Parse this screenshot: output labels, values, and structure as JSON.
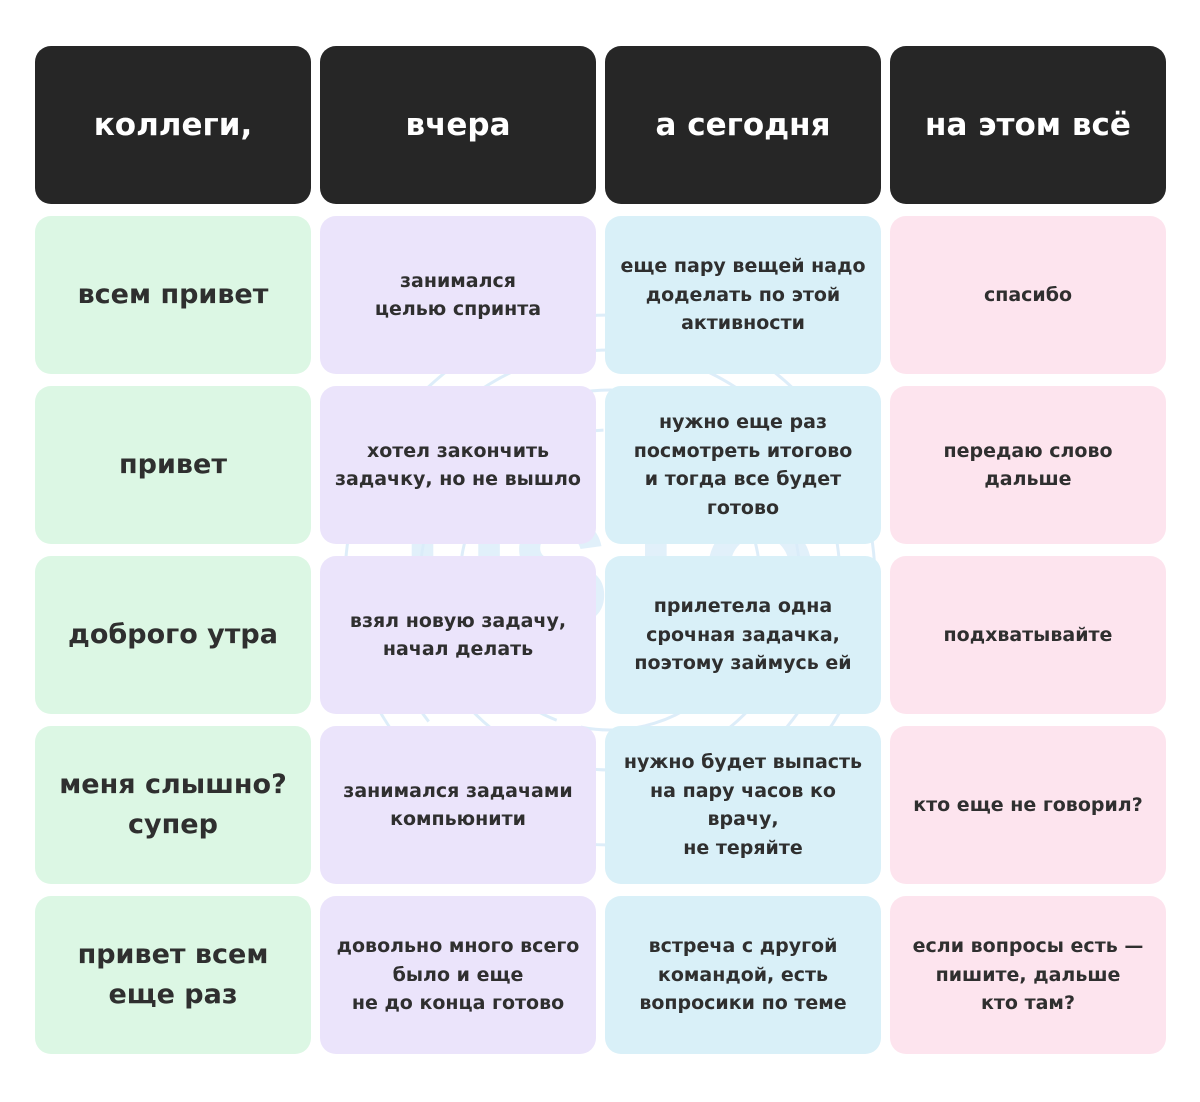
{
  "colors": {
    "header_bg": "#262626",
    "col1_bg": "#dcf7e4",
    "col2_bg": "#ebe4fb",
    "col3_bg": "#d9f0f8",
    "col4_bg": "#fde4ee"
  },
  "headers": [
    "коллеги,",
    "вчера",
    "а сегодня",
    "на этом всё"
  ],
  "rows": [
    [
      "всем привет",
      "занимался\nцелью спринта",
      "еще пару вещей надо\nдоделать по этой\nактивности",
      "спасибо"
    ],
    [
      "привет",
      "хотел закончить\nзадачку, но не вышло",
      "нужно еще раз\nпосмотреть итогово\nи тогда все будет\nготово",
      "передаю слово\nдальше"
    ],
    [
      "доброго утра",
      "взял новую задачу,\nначал делать",
      "прилетела одна\nсрочная задачка,\nпоэтому займусь ей",
      "подхватывайте"
    ],
    [
      "меня слышно?\nсупер",
      "занимался задачами\nкомпьюнити",
      "нужно будет выпасть\nна пару часов ко врачу,\nне теряйте",
      "кто еще не говорил?"
    ],
    [
      "привет всем\nеще раз",
      "довольно много всего\nбыло и еще\nне до конца готово",
      "встреча с другой\nкомандой, есть\nвопросики по теме",
      "если вопросы есть —\nпишите, дальше\nкто там?"
    ]
  ],
  "watermark": {
    "text": "HSTQ",
    "color": "#a9d3f2"
  }
}
